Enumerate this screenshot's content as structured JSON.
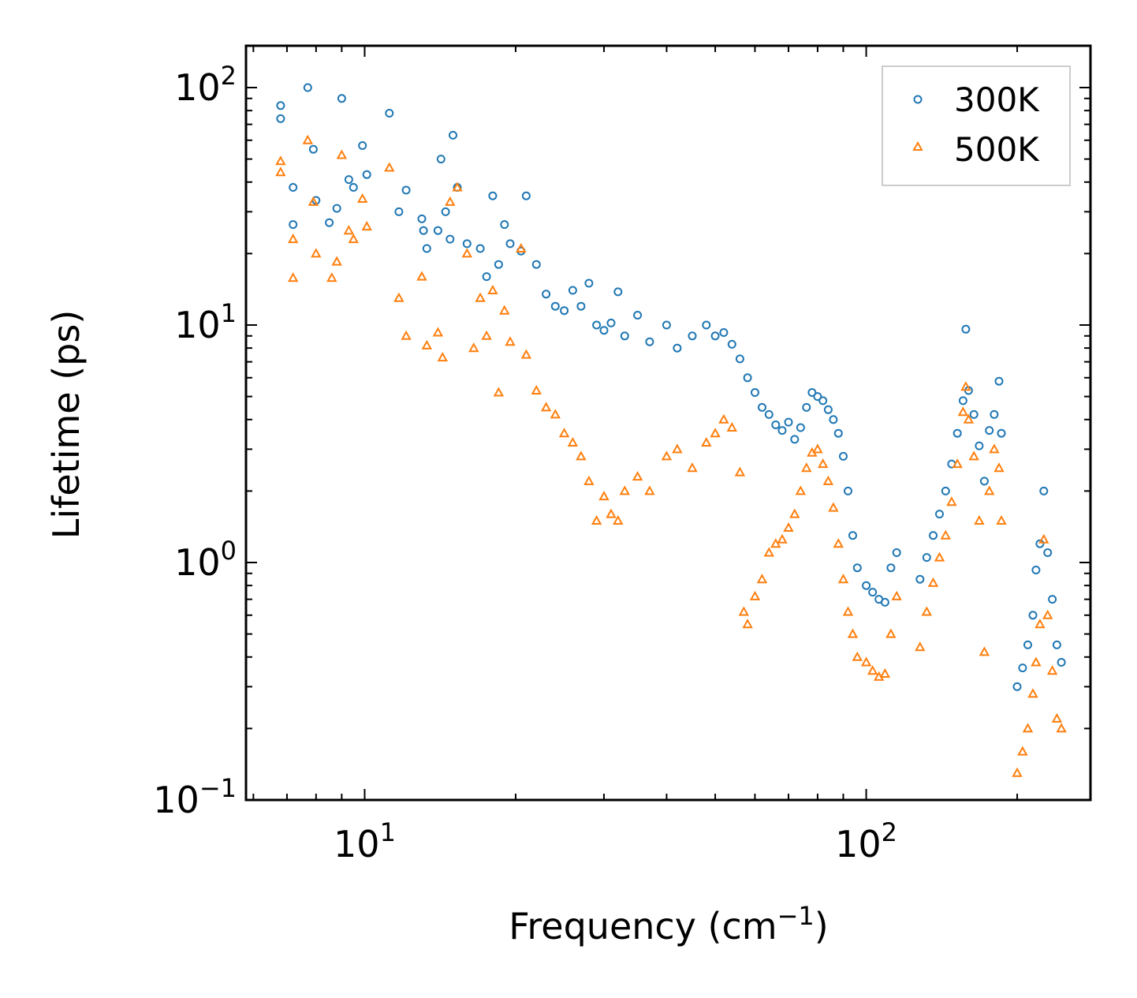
{
  "chart_data": {
    "type": "scatter",
    "xscale": "log",
    "yscale": "log",
    "xlim": [
      5.8,
      280
    ],
    "ylim": [
      0.1,
      150
    ],
    "xlabel": "Frequency (cm",
    "xlabel_sup": "−1",
    "xlabel_end": ")",
    "ylabel": "Lifetime (ps)",
    "x_ticks": [
      {
        "base": "10",
        "exp": "1",
        "value": 10
      },
      {
        "base": "10",
        "exp": "2",
        "value": 100
      }
    ],
    "y_ticks": [
      {
        "base": "10",
        "exp": "−1",
        "value": 0.1
      },
      {
        "base": "10",
        "exp": "0",
        "value": 1
      },
      {
        "base": "10",
        "exp": "1",
        "value": 10
      },
      {
        "base": "10",
        "exp": "2",
        "value": 100
      }
    ],
    "legend": {
      "position": "top-right"
    },
    "series": [
      {
        "name": "300K",
        "marker": "circle",
        "color": "#1f77b4",
        "points": [
          [
            6.8,
            84
          ],
          [
            6.8,
            74
          ],
          [
            7.2,
            38
          ],
          [
            7.2,
            26.5
          ],
          [
            7.7,
            100
          ],
          [
            7.9,
            55
          ],
          [
            8.0,
            33.5
          ],
          [
            8.5,
            27
          ],
          [
            8.8,
            31
          ],
          [
            9.0,
            90
          ],
          [
            9.3,
            41
          ],
          [
            9.5,
            38
          ],
          [
            9.9,
            57
          ],
          [
            10.1,
            43
          ],
          [
            11.2,
            78
          ],
          [
            11.7,
            30
          ],
          [
            12.1,
            37
          ],
          [
            13.0,
            28
          ],
          [
            13.1,
            25
          ],
          [
            13.3,
            21
          ],
          [
            14.0,
            25
          ],
          [
            14.2,
            50
          ],
          [
            14.5,
            30
          ],
          [
            14.8,
            23
          ],
          [
            15.0,
            63
          ],
          [
            15.3,
            38
          ],
          [
            16.0,
            22
          ],
          [
            17.0,
            21
          ],
          [
            17.5,
            16
          ],
          [
            18.0,
            35
          ],
          [
            18.5,
            18
          ],
          [
            19.0,
            26.5
          ],
          [
            19.5,
            22
          ],
          [
            20.5,
            20.5
          ],
          [
            21.0,
            35
          ],
          [
            22.0,
            18
          ],
          [
            23.0,
            13.5
          ],
          [
            24.0,
            12
          ],
          [
            25.0,
            11.5
          ],
          [
            26.0,
            14
          ],
          [
            27.0,
            12
          ],
          [
            28.0,
            15
          ],
          [
            29.0,
            10
          ],
          [
            30.0,
            9.5
          ],
          [
            31.0,
            10.2
          ],
          [
            32.0,
            13.8
          ],
          [
            33.0,
            9
          ],
          [
            35.0,
            11
          ],
          [
            37.0,
            8.5
          ],
          [
            40.0,
            10
          ],
          [
            42.0,
            8
          ],
          [
            45.0,
            9
          ],
          [
            48.0,
            10
          ],
          [
            50.0,
            9
          ],
          [
            52.0,
            9.3
          ],
          [
            54.0,
            8.3
          ],
          [
            56.0,
            7.2
          ],
          [
            58.0,
            6.0
          ],
          [
            60.0,
            5.2
          ],
          [
            62.0,
            4.5
          ],
          [
            64.0,
            4.2
          ],
          [
            66.0,
            3.8
          ],
          [
            68.0,
            3.6
          ],
          [
            70.0,
            3.9
          ],
          [
            72.0,
            3.3
          ],
          [
            74.0,
            3.7
          ],
          [
            76.0,
            4.5
          ],
          [
            78.0,
            5.2
          ],
          [
            80.0,
            5.0
          ],
          [
            82.0,
            4.8
          ],
          [
            84.0,
            4.4
          ],
          [
            86.0,
            4.0
          ],
          [
            88.0,
            3.5
          ],
          [
            90.0,
            2.8
          ],
          [
            92.0,
            2.0
          ],
          [
            94.0,
            1.3
          ],
          [
            96.0,
            0.95
          ],
          [
            100.0,
            0.8
          ],
          [
            103.0,
            0.75
          ],
          [
            106.0,
            0.7
          ],
          [
            109.0,
            0.68
          ],
          [
            112.0,
            0.95
          ],
          [
            115.0,
            1.1
          ],
          [
            128.0,
            0.85
          ],
          [
            132.0,
            1.05
          ],
          [
            136.0,
            1.3
          ],
          [
            140.0,
            1.6
          ],
          [
            144.0,
            2.0
          ],
          [
            148.0,
            2.6
          ],
          [
            152.0,
            3.5
          ],
          [
            156.0,
            4.8
          ],
          [
            158.0,
            9.6
          ],
          [
            160.0,
            5.3
          ],
          [
            164.0,
            4.2
          ],
          [
            168.0,
            3.1
          ],
          [
            172.0,
            2.2
          ],
          [
            176.0,
            3.6
          ],
          [
            180.0,
            4.2
          ],
          [
            184.0,
            5.8
          ],
          [
            186.0,
            3.5
          ],
          [
            200.0,
            0.3
          ],
          [
            205.0,
            0.36
          ],
          [
            210.0,
            0.45
          ],
          [
            215.0,
            0.6
          ],
          [
            218.0,
            0.93
          ],
          [
            222.0,
            1.2
          ],
          [
            226.0,
            2.0
          ],
          [
            230.0,
            1.1
          ],
          [
            235.0,
            0.7
          ],
          [
            240.0,
            0.45
          ],
          [
            245.0,
            0.38
          ]
        ]
      },
      {
        "name": "500K",
        "marker": "triangle",
        "color": "#ff7f0e",
        "points": [
          [
            6.8,
            49
          ],
          [
            6.8,
            44
          ],
          [
            7.2,
            23
          ],
          [
            7.2,
            15.8
          ],
          [
            7.7,
            60
          ],
          [
            7.9,
            33
          ],
          [
            8.0,
            20
          ],
          [
            8.6,
            15.8
          ],
          [
            8.8,
            18.5
          ],
          [
            9.0,
            52
          ],
          [
            9.3,
            25
          ],
          [
            9.5,
            23
          ],
          [
            9.9,
            34
          ],
          [
            10.1,
            26
          ],
          [
            11.2,
            46
          ],
          [
            11.7,
            13
          ],
          [
            12.1,
            9
          ],
          [
            13.0,
            16
          ],
          [
            13.3,
            8.2
          ],
          [
            14.0,
            9.3
          ],
          [
            14.3,
            7.3
          ],
          [
            14.8,
            33
          ],
          [
            15.3,
            38
          ],
          [
            16.0,
            20
          ],
          [
            16.5,
            8
          ],
          [
            17.0,
            13
          ],
          [
            17.5,
            9
          ],
          [
            18.0,
            14
          ],
          [
            18.5,
            5.2
          ],
          [
            19.0,
            11.5
          ],
          [
            19.5,
            8.5
          ],
          [
            20.5,
            21
          ],
          [
            21.0,
            7.5
          ],
          [
            22.0,
            5.3
          ],
          [
            23.0,
            4.5
          ],
          [
            24.0,
            4.2
          ],
          [
            25.0,
            3.5
          ],
          [
            26.0,
            3.2
          ],
          [
            27.0,
            2.8
          ],
          [
            28.0,
            2.2
          ],
          [
            29.0,
            1.5
          ],
          [
            30.0,
            1.9
          ],
          [
            31.0,
            1.6
          ],
          [
            32.0,
            1.5
          ],
          [
            33.0,
            2.0
          ],
          [
            35.0,
            2.3
          ],
          [
            37.0,
            2.0
          ],
          [
            40.0,
            2.8
          ],
          [
            42.0,
            3.0
          ],
          [
            45.0,
            2.5
          ],
          [
            48.0,
            3.2
          ],
          [
            50.0,
            3.5
          ],
          [
            52.0,
            4.0
          ],
          [
            54.0,
            3.7
          ],
          [
            56.0,
            2.4
          ],
          [
            57.0,
            0.62
          ],
          [
            58.0,
            0.55
          ],
          [
            60.0,
            0.72
          ],
          [
            62.0,
            0.85
          ],
          [
            64.0,
            1.1
          ],
          [
            66.0,
            1.2
          ],
          [
            68.0,
            1.25
          ],
          [
            70.0,
            1.4
          ],
          [
            72.0,
            1.6
          ],
          [
            74.0,
            2.0
          ],
          [
            76.0,
            2.5
          ],
          [
            78.0,
            2.9
          ],
          [
            80.0,
            3.0
          ],
          [
            82.0,
            2.6
          ],
          [
            84.0,
            2.2
          ],
          [
            86.0,
            1.7
          ],
          [
            88.0,
            1.2
          ],
          [
            90.0,
            0.85
          ],
          [
            92.0,
            0.62
          ],
          [
            94.0,
            0.5
          ],
          [
            96.0,
            0.4
          ],
          [
            100.0,
            0.38
          ],
          [
            103.0,
            0.35
          ],
          [
            106.0,
            0.33
          ],
          [
            109.0,
            0.34
          ],
          [
            112.0,
            0.5
          ],
          [
            115.0,
            0.72
          ],
          [
            128.0,
            0.44
          ],
          [
            132.0,
            0.62
          ],
          [
            136.0,
            0.82
          ],
          [
            140.0,
            1.05
          ],
          [
            144.0,
            1.3
          ],
          [
            148.0,
            1.8
          ],
          [
            152.0,
            2.6
          ],
          [
            156.0,
            4.3
          ],
          [
            158.0,
            5.5
          ],
          [
            160.0,
            4.0
          ],
          [
            164.0,
            2.8
          ],
          [
            168.0,
            1.5
          ],
          [
            172.0,
            0.42
          ],
          [
            176.0,
            2.0
          ],
          [
            180.0,
            3.0
          ],
          [
            184.0,
            2.5
          ],
          [
            186.0,
            1.5
          ],
          [
            200.0,
            0.13
          ],
          [
            205.0,
            0.16
          ],
          [
            210.0,
            0.2
          ],
          [
            215.0,
            0.28
          ],
          [
            218.0,
            0.38
          ],
          [
            222.0,
            0.55
          ],
          [
            226.0,
            1.25
          ],
          [
            230.0,
            0.6
          ],
          [
            235.0,
            0.35
          ],
          [
            240.0,
            0.22
          ],
          [
            245.0,
            0.2
          ]
        ]
      }
    ]
  }
}
